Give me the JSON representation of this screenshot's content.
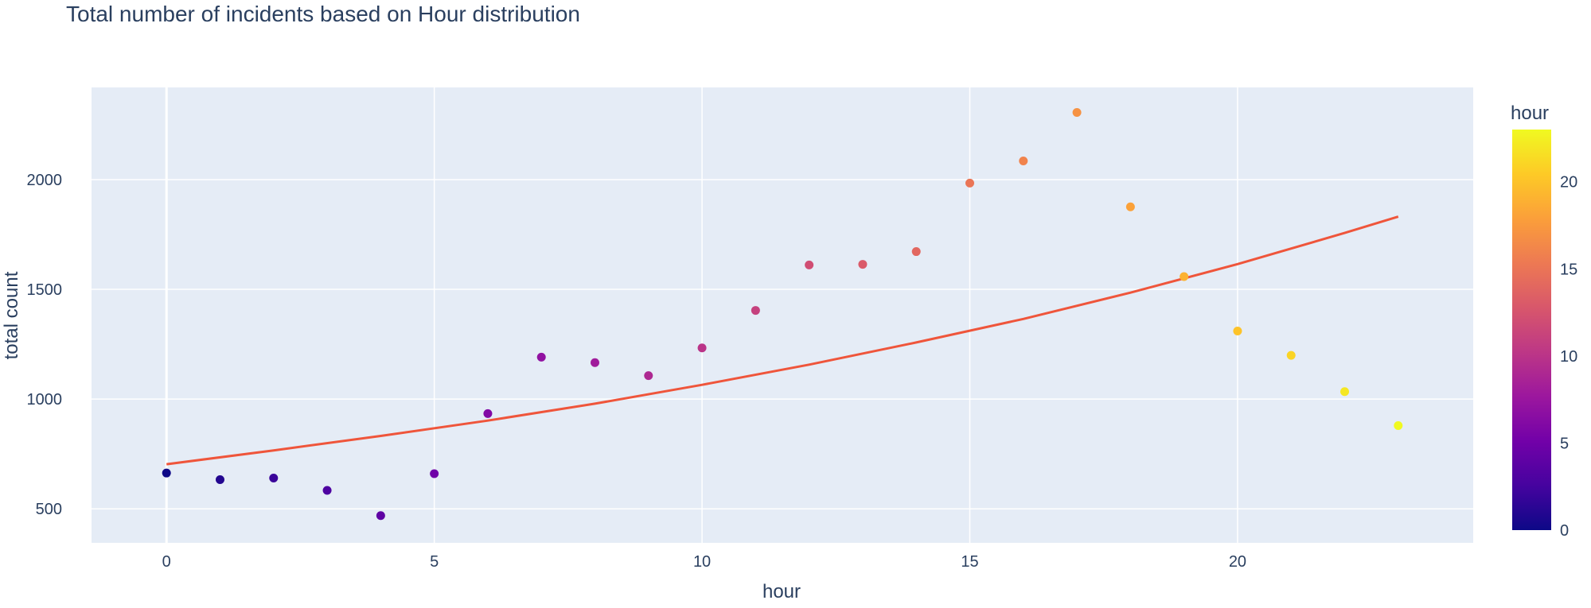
{
  "chart_data": {
    "type": "scatter",
    "title": "Total number of incidents based on Hour distribution",
    "xlabel": "hour",
    "ylabel": "total count",
    "xlim": [
      -1.4,
      24.4
    ],
    "ylim": [
      345,
      2420
    ],
    "xticks": [
      0,
      5,
      10,
      15,
      20
    ],
    "yticks": [
      500,
      1000,
      1500,
      2000
    ],
    "grid": true,
    "colorbar": {
      "title": "hour",
      "range": [
        0,
        23
      ],
      "ticks": [
        0,
        5,
        10,
        15,
        20
      ],
      "colorscale": [
        "#0d0887",
        "#46039f",
        "#7201a8",
        "#9c179e",
        "#bd3786",
        "#d8576b",
        "#ed7953",
        "#fb9f3a",
        "#fdca26",
        "#f0f921"
      ]
    },
    "points": {
      "x": [
        0,
        1,
        2,
        3,
        4,
        5,
        6,
        7,
        8,
        9,
        10,
        11,
        12,
        13,
        14,
        15,
        16,
        17,
        18,
        19,
        20,
        21,
        22,
        23
      ],
      "y": [
        663,
        633,
        640,
        584,
        469,
        660,
        934,
        1191,
        1166,
        1107,
        1233,
        1404,
        1611,
        1614,
        1672,
        1984,
        2085,
        2306,
        1876,
        1558,
        1310,
        1199,
        1034,
        879
      ]
    },
    "trendline": {
      "color": "#ef553b",
      "x": [
        0,
        2,
        4,
        6,
        8,
        10,
        12,
        14,
        16,
        18,
        20,
        22,
        23
      ],
      "y": [
        703,
        766,
        832,
        902,
        979,
        1065,
        1157,
        1258,
        1365,
        1485,
        1615,
        1757,
        1831
      ]
    }
  }
}
